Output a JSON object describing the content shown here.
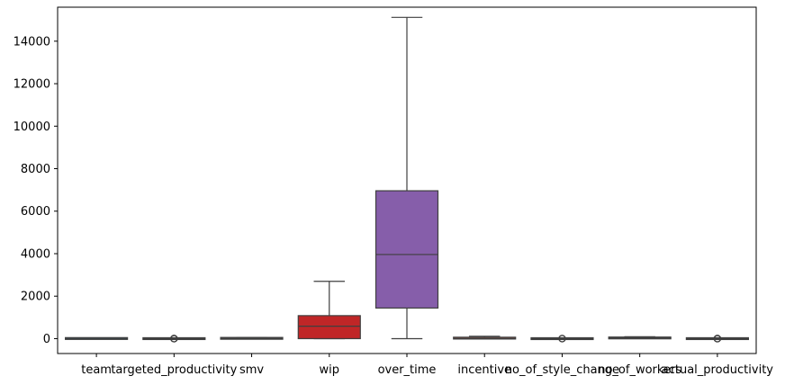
{
  "chart_data": {
    "type": "box",
    "title": "",
    "xlabel": "",
    "ylabel": "",
    "ylim": [
      -700,
      15600
    ],
    "yticks": [
      0,
      2000,
      4000,
      6000,
      8000,
      10000,
      12000,
      14000
    ],
    "grid": false,
    "categories": [
      "team",
      "targeted_productivity",
      "smv",
      "wip",
      "over_time",
      "incentive",
      "no_of_style_change",
      "no_of_workers",
      "actual_productivity"
    ],
    "boxes": [
      {
        "category": "team",
        "color": "#1f77b4",
        "min": 1,
        "q1": 3,
        "median": 6,
        "q3": 9,
        "max": 12,
        "outliers": []
      },
      {
        "category": "targeted_productivity",
        "color": "#ff7f0e",
        "min": 0.6,
        "q1": 0.7,
        "median": 0.75,
        "q3": 0.8,
        "max": 0.8,
        "outliers": [
          0.07,
          0.35,
          0.4,
          0.5
        ]
      },
      {
        "category": "smv",
        "color": "#2ca02c",
        "min": 2.9,
        "q1": 3.94,
        "median": 15.26,
        "q3": 24.26,
        "max": 54.56,
        "outliers": []
      },
      {
        "category": "wip",
        "color": "#d62728",
        "min": 0,
        "q1": 0,
        "median": 586,
        "q3": 1083,
        "max": 2698,
        "outliers": []
      },
      {
        "category": "over_time",
        "color": "#9467bd",
        "min": 0,
        "q1": 1440,
        "median": 3960,
        "q3": 6960,
        "max": 15120,
        "outliers": []
      },
      {
        "category": "incentive",
        "color": "#8c564b",
        "min": 0,
        "q1": 0,
        "median": 0,
        "q3": 50,
        "max": 113,
        "outliers": []
      },
      {
        "category": "no_of_style_change",
        "color": "#e377c2",
        "min": 0,
        "q1": 0,
        "median": 0,
        "q3": 0,
        "max": 0,
        "outliers": [
          1,
          2
        ]
      },
      {
        "category": "no_of_workers",
        "color": "#7f7f7f",
        "min": 2,
        "q1": 9,
        "median": 34,
        "q3": 57,
        "max": 89,
        "outliers": []
      },
      {
        "category": "actual_productivity",
        "color": "#bcbd22",
        "min": 0.33,
        "q1": 0.65,
        "median": 0.77,
        "q3": 0.85,
        "max": 1.1,
        "outliers": [
          0.23,
          0.25,
          0.28,
          0.3
        ]
      }
    ]
  }
}
